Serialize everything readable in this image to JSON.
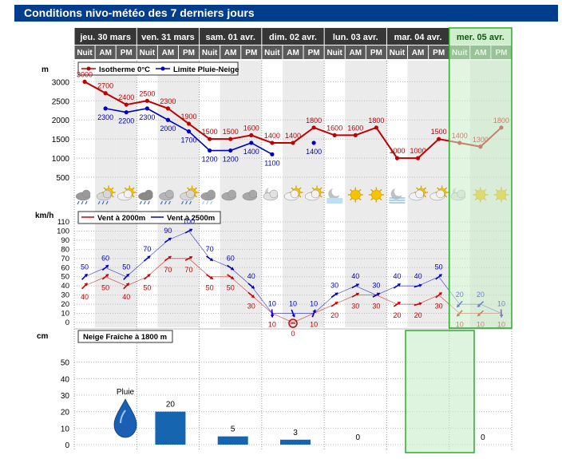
{
  "page_title": "Conditions nivo-météo des 7 derniers jours",
  "days": [
    "jeu. 30 mars",
    "ven. 31 mars",
    "sam. 01 avr.",
    "dim. 02 avr.",
    "lun. 03 avr.",
    "mar. 04 avr.",
    "mer. 05 avr."
  ],
  "periods": [
    "Nuit",
    "AM",
    "PM"
  ],
  "forecast_day_index": 6,
  "chart_data": [
    {
      "type": "line",
      "legend_position": "top-left",
      "ylabel": "m",
      "ylim": [
        0,
        3300
      ],
      "yticks": [
        500,
        1000,
        1500,
        2000,
        2500,
        3000
      ],
      "series": [
        {
          "name": "Isotherme 0°C",
          "color": "#c00000",
          "values": [
            3000,
            2700,
            2400,
            2500,
            2300,
            1900,
            1500,
            1500,
            1600,
            1400,
            1400,
            1800,
            1600,
            1600,
            1800,
            1000,
            1000,
            1500,
            1400,
            1300,
            1800
          ]
        },
        {
          "name": "Limite Pluie-Neige",
          "color": "#0000c0",
          "values": [
            null,
            2300,
            2200,
            2300,
            2000,
            1700,
            1200,
            1200,
            1400,
            1100,
            null,
            1400,
            null,
            null,
            null,
            null,
            null,
            null,
            null,
            null,
            null
          ]
        }
      ]
    },
    {
      "type": "line",
      "legend_position": "top-left",
      "ylabel": "km/h",
      "ylim": [
        0,
        110
      ],
      "yticks": [
        0,
        10,
        20,
        30,
        40,
        50,
        60,
        70,
        80,
        90,
        100,
        110
      ],
      "series": [
        {
          "name": "Vent à 2000m",
          "color": "#cc0000",
          "values": [
            40,
            50,
            40,
            50,
            70,
            70,
            50,
            50,
            30,
            10,
            0,
            10,
            20,
            30,
            30,
            20,
            20,
            30,
            10,
            10,
            10
          ]
        },
        {
          "name": "Vent à 2500m",
          "color": "#0000cc",
          "values": [
            50,
            60,
            50,
            70,
            90,
            100,
            70,
            60,
            40,
            10,
            10,
            10,
            30,
            40,
            30,
            40,
            40,
            50,
            20,
            20,
            10
          ]
        }
      ]
    },
    {
      "type": "bar",
      "legend_position": "top-left",
      "title": "Neige Fraîche à 1800 m",
      "ylabel": "cm",
      "ylim": [
        0,
        60
      ],
      "yticks": [
        0,
        10,
        20,
        30,
        40,
        50
      ],
      "categories": [
        "jeu. 30 mars",
        "ven. 31 mars",
        "sam. 01 avr.",
        "dim. 02 avr.",
        "lun. 03 avr.",
        "mar. 04 avr.",
        "mer. 05 avr."
      ],
      "values": [
        null,
        20,
        5,
        3,
        0,
        null,
        0
      ],
      "annotation": "Pluie"
    }
  ],
  "weather_icons": [
    "rain-sleet-icon",
    "partly-sunny-showers-icon",
    "partly-sunny-icon",
    "rain-icon",
    "showers-icon",
    "partly-sunny-showers-icon",
    "snow-showers-icon",
    "cloud-icon",
    "cloud-icon",
    "moon-cloud-icon",
    "partly-sunny-icon",
    "partly-sunny-icon",
    "clear-night-icon",
    "sun-icon",
    "sun-icon",
    "fog-icon",
    "partly-sunny-icon",
    "partly-sunny-icon",
    "moon-cloud-icon",
    "sun-icon",
    "sun-icon"
  ],
  "colors": {
    "title_bar": "#003d8c",
    "header_dark": "#3a3a3a",
    "forecast_highlight": "#c8ecc8",
    "forecast_border": "#2faa2f",
    "temp_line": "#c00000",
    "rain_snow_line": "#0000c0",
    "bar": "#1565b0"
  }
}
